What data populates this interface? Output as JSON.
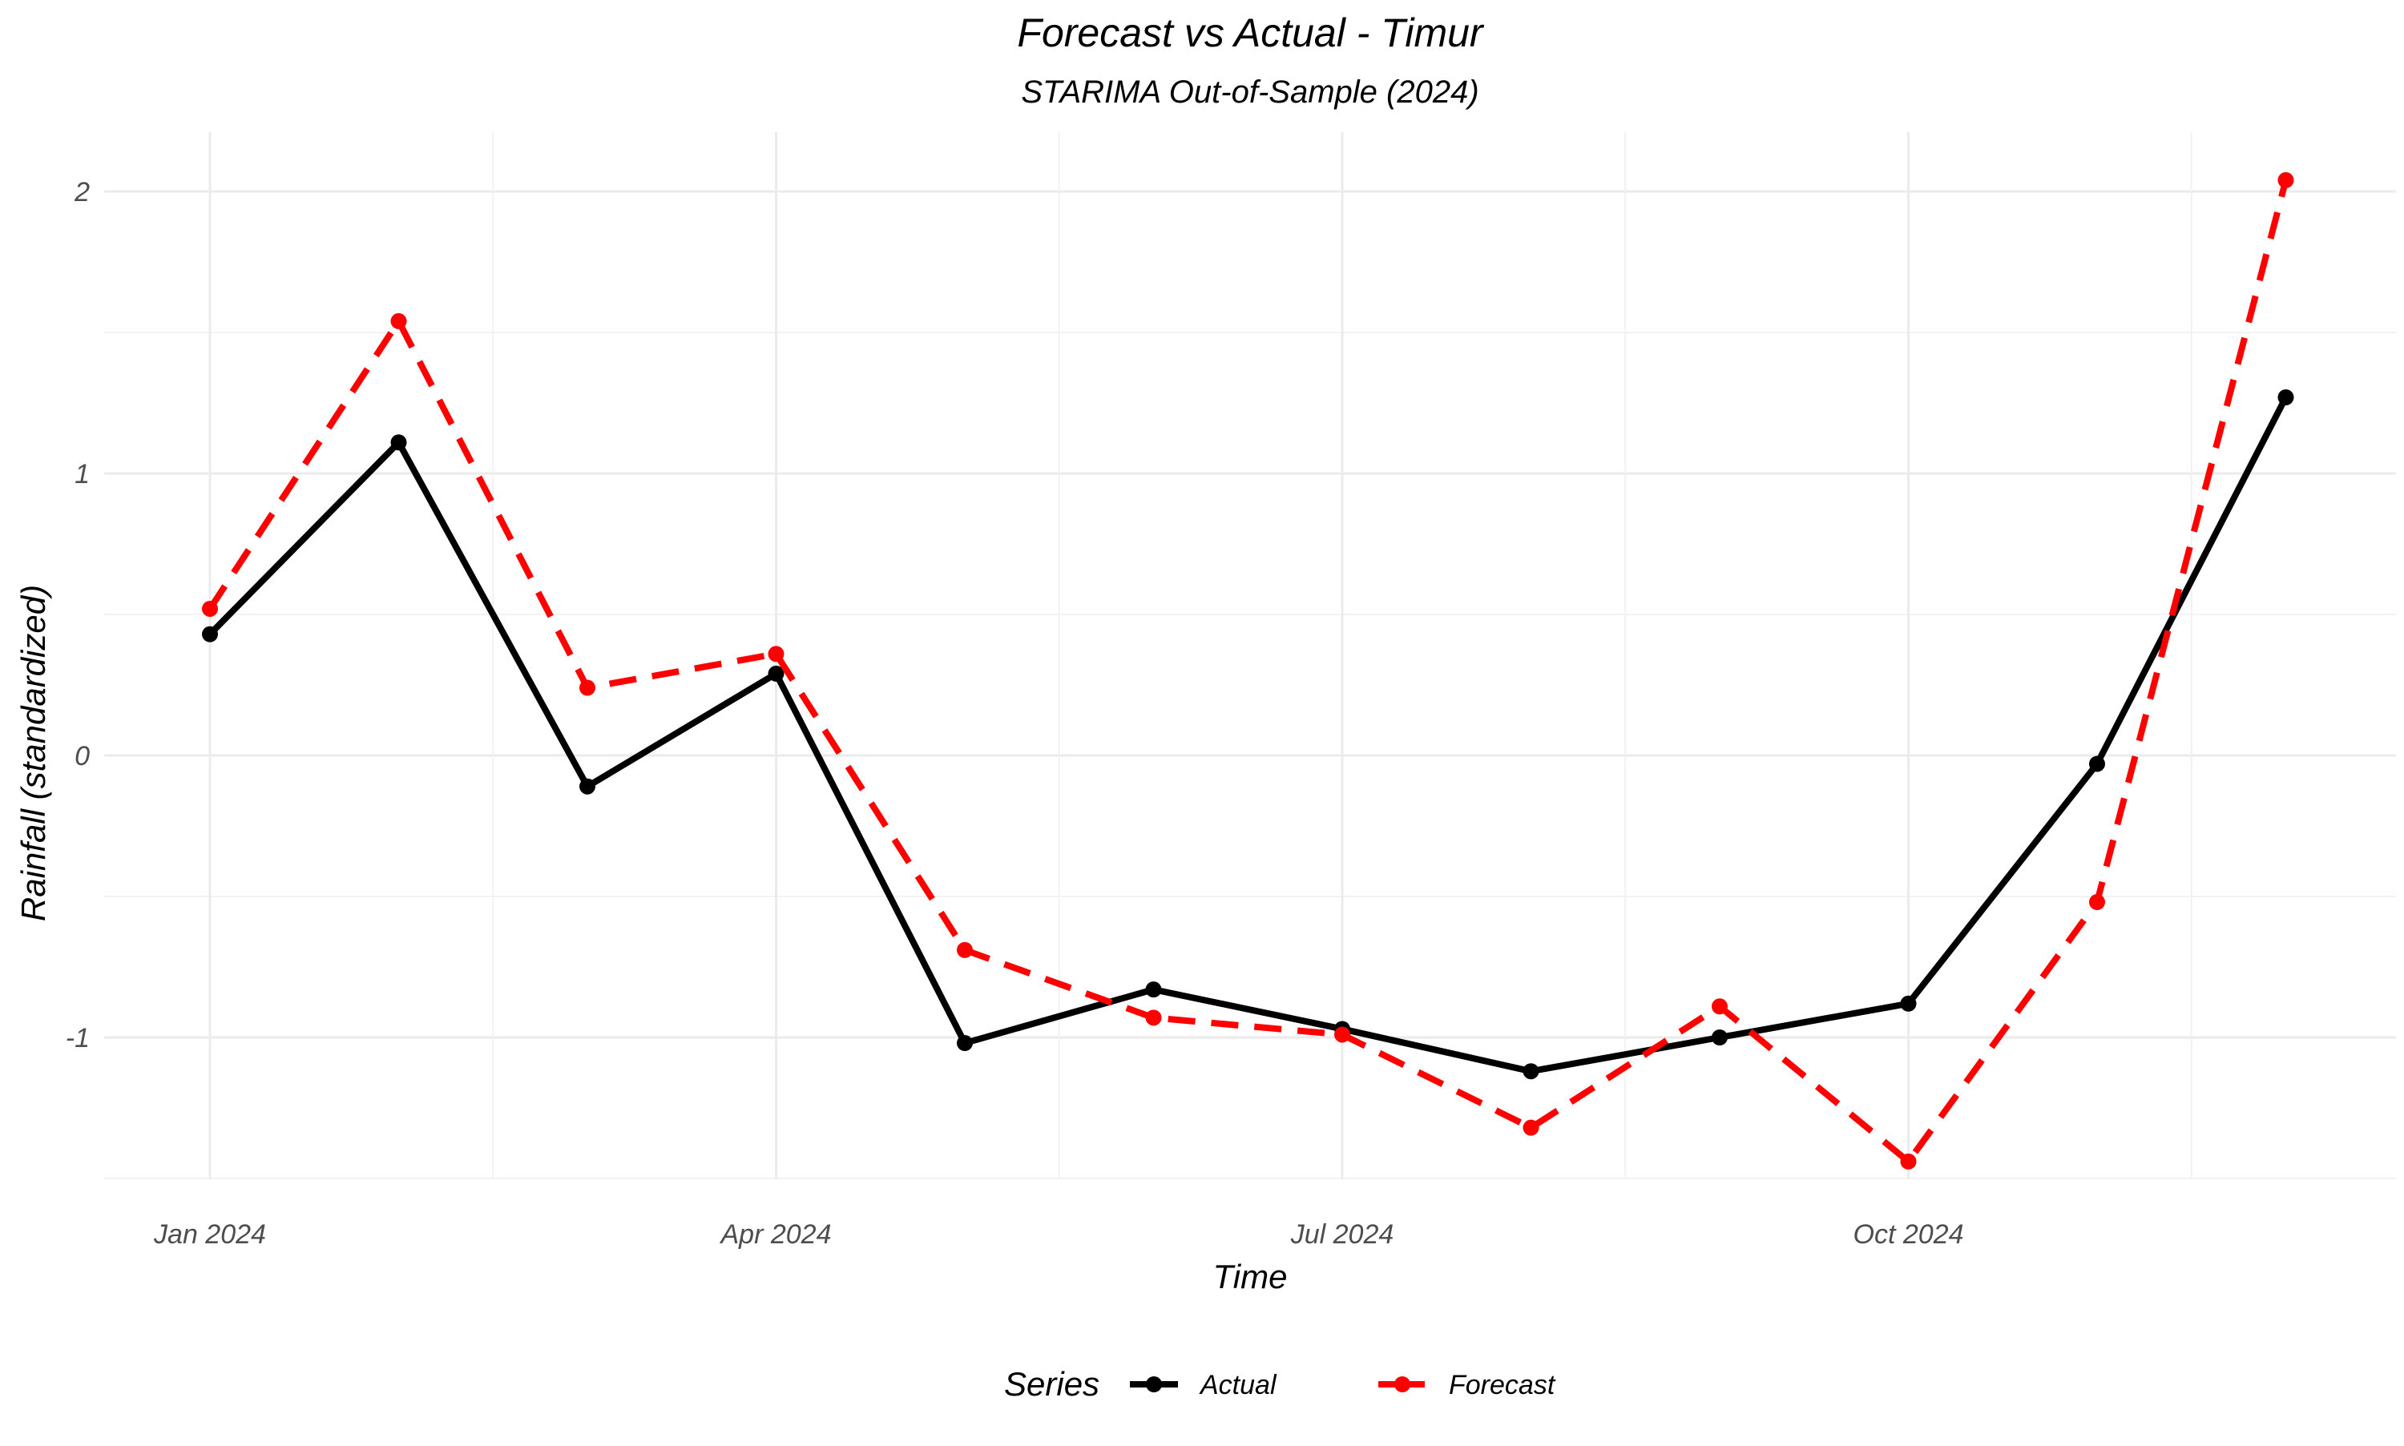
{
  "chart_data": {
    "type": "line",
    "title": "Forecast vs Actual - Timur",
    "subtitle": "STARIMA Out-of-Sample (2024)",
    "xlabel": "Time",
    "ylabel": "Rainfall (standardized)",
    "x": [
      "2024-01",
      "2024-02",
      "2024-03",
      "2024-04",
      "2024-05",
      "2024-06",
      "2024-07",
      "2024-08",
      "2024-09",
      "2024-10",
      "2024-11",
      "2024-12"
    ],
    "x_ticks": [
      {
        "x": "2024-01",
        "label": "Jan 2024"
      },
      {
        "x": "2024-04",
        "label": "Apr 2024"
      },
      {
        "x": "2024-07",
        "label": "Jul 2024"
      },
      {
        "x": "2024-10",
        "label": "Oct 2024"
      }
    ],
    "y_ticks": [
      {
        "value": 2,
        "label": "2"
      },
      {
        "value": 1,
        "label": "1"
      },
      {
        "value": 0,
        "label": "0"
      },
      {
        "value": -1,
        "label": "-1"
      }
    ],
    "ylim": [
      -1.5,
      2.2
    ],
    "grid": true,
    "legend": {
      "title": "Series",
      "position": "bottom"
    },
    "series": [
      {
        "name": "Actual",
        "color": "#000000",
        "dash": "solid",
        "values": [
          0.43,
          1.11,
          -0.11,
          0.29,
          -1.02,
          -0.83,
          -0.97,
          -1.12,
          -1.0,
          -0.88,
          -0.03,
          1.27
        ]
      },
      {
        "name": "Forecast",
        "color": "#ff0000",
        "dash": "dashed",
        "values": [
          0.52,
          1.54,
          0.24,
          0.36,
          -0.69,
          -0.93,
          -0.99,
          -1.32,
          -0.89,
          -1.44,
          -0.52,
          2.04
        ]
      }
    ]
  }
}
